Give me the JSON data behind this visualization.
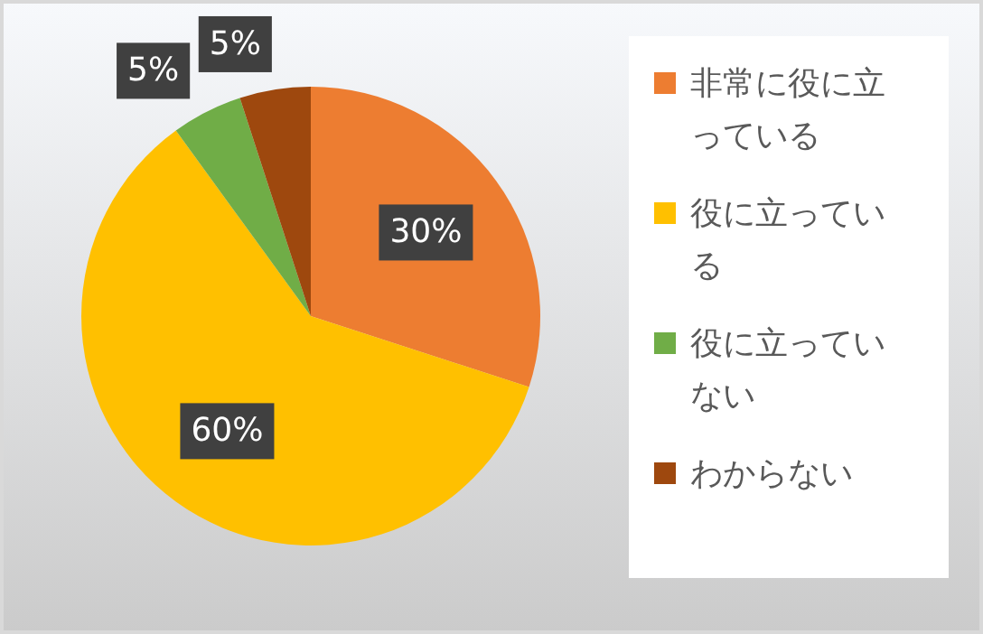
{
  "chart_data": {
    "type": "pie",
    "categories": [
      "非常に役に立っている",
      "役に立っている",
      "役に立っていない",
      "わからない"
    ],
    "values": [
      30,
      60,
      5,
      5
    ],
    "colors": [
      "#ed7d31",
      "#ffc000",
      "#70ad47",
      "#9e480e"
    ],
    "value_labels": [
      "30%",
      "60%",
      "5%",
      "5%"
    ],
    "legend": "right"
  }
}
